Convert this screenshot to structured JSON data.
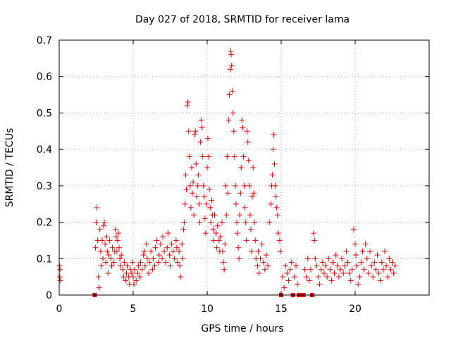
{
  "chart_data": {
    "type": "scatter",
    "title": "Day 027 of 2018, SRMTID for receiver lama",
    "xlabel": "GPS time / hours",
    "ylabel": "SRMTID / TECUs",
    "xlim": [
      0,
      25
    ],
    "ylim": [
      0,
      0.7
    ],
    "xticks": [
      0,
      5,
      10,
      15,
      20
    ],
    "yticks": [
      0,
      0.1,
      0.2,
      0.3,
      0.4,
      0.5,
      0.6,
      0.7
    ],
    "xtick_labels": [
      "0",
      "5",
      "10",
      "15",
      "20"
    ],
    "ytick_labels": [
      "0",
      "0.1",
      "0.2",
      "0.3",
      "0.4",
      "0.5",
      "0.6",
      "0.7"
    ],
    "grid": true,
    "marker": "+",
    "color": "#e00000",
    "series": [
      {
        "name": "SRMTID",
        "points": [
          [
            0.02,
            0.08
          ],
          [
            0.04,
            0.05
          ],
          [
            0.06,
            0.07
          ],
          [
            0.08,
            0.04
          ],
          [
            2.4,
            0.0
          ],
          [
            2.45,
            0.13
          ],
          [
            2.5,
            0.2
          ],
          [
            2.55,
            0.24
          ],
          [
            2.6,
            0.15
          ],
          [
            2.65,
            0.05
          ],
          [
            2.7,
            0.02
          ],
          [
            2.75,
            0.18
          ],
          [
            2.8,
            0.12
          ],
          [
            2.85,
            0.08
          ],
          [
            2.9,
            0.15
          ],
          [
            2.95,
            0.1
          ],
          [
            3.0,
            0.19
          ],
          [
            3.05,
            0.2
          ],
          [
            3.1,
            0.14
          ],
          [
            3.15,
            0.09
          ],
          [
            3.2,
            0.16
          ],
          [
            3.25,
            0.12
          ],
          [
            3.3,
            0.06
          ],
          [
            3.35,
            0.11
          ],
          [
            3.4,
            0.15
          ],
          [
            3.5,
            0.1
          ],
          [
            3.55,
            0.08
          ],
          [
            3.6,
            0.13
          ],
          [
            3.7,
            0.09
          ],
          [
            3.75,
            0.12
          ],
          [
            3.8,
            0.18
          ],
          [
            3.85,
            0.16
          ],
          [
            3.9,
            0.12
          ],
          [
            3.95,
            0.15
          ],
          [
            4.0,
            0.17
          ],
          [
            4.05,
            0.13
          ],
          [
            4.1,
            0.1
          ],
          [
            4.15,
            0.08
          ],
          [
            4.2,
            0.11
          ],
          [
            4.3,
            0.07
          ],
          [
            4.35,
            0.05
          ],
          [
            4.4,
            0.09
          ],
          [
            4.5,
            0.04
          ],
          [
            4.55,
            0.06
          ],
          [
            4.6,
            0.08
          ],
          [
            4.7,
            0.05
          ],
          [
            4.75,
            0.03
          ],
          [
            4.8,
            0.07
          ],
          [
            4.9,
            0.06
          ],
          [
            4.95,
            0.09
          ],
          [
            5.0,
            0.05
          ],
          [
            5.05,
            0.03
          ],
          [
            5.1,
            0.07
          ],
          [
            5.2,
            0.04
          ],
          [
            5.3,
            0.06
          ],
          [
            5.35,
            0.08
          ],
          [
            5.45,
            0.05
          ],
          [
            5.5,
            0.09
          ],
          [
            5.6,
            0.07
          ],
          [
            5.7,
            0.11
          ],
          [
            5.75,
            0.12
          ],
          [
            5.8,
            0.08
          ],
          [
            5.9,
            0.14
          ],
          [
            5.95,
            0.1
          ],
          [
            6.05,
            0.06
          ],
          [
            6.1,
            0.09
          ],
          [
            6.2,
            0.12
          ],
          [
            6.3,
            0.07
          ],
          [
            6.35,
            0.1
          ],
          [
            6.45,
            0.08
          ],
          [
            6.5,
            0.13
          ],
          [
            6.6,
            0.15
          ],
          [
            6.7,
            0.09
          ],
          [
            6.75,
            0.11
          ],
          [
            6.85,
            0.14
          ],
          [
            6.95,
            0.1
          ],
          [
            7.0,
            0.16
          ],
          [
            7.1,
            0.12
          ],
          [
            7.2,
            0.09
          ],
          [
            7.3,
            0.13
          ],
          [
            7.35,
            0.17
          ],
          [
            7.45,
            0.11
          ],
          [
            7.5,
            0.08
          ],
          [
            7.6,
            0.14
          ],
          [
            7.7,
            0.12
          ],
          [
            7.8,
            0.1
          ],
          [
            7.9,
            0.15
          ],
          [
            7.95,
            0.13
          ],
          [
            8.0,
            0.09
          ],
          [
            8.1,
            0.12
          ],
          [
            8.15,
            0.08
          ],
          [
            8.2,
            0.05
          ],
          [
            8.3,
            0.14
          ],
          [
            8.35,
            0.1
          ],
          [
            8.4,
            0.18
          ],
          [
            8.45,
            0.2
          ],
          [
            8.5,
            0.25
          ],
          [
            8.55,
            0.33
          ],
          [
            8.6,
            0.29
          ],
          [
            8.65,
            0.52
          ],
          [
            8.7,
            0.53
          ],
          [
            8.75,
            0.45
          ],
          [
            8.8,
            0.38
          ],
          [
            8.85,
            0.3
          ],
          [
            8.9,
            0.24
          ],
          [
            8.95,
            0.35
          ],
          [
            9.0,
            0.28
          ],
          [
            9.05,
            0.31
          ],
          [
            9.1,
            0.22
          ],
          [
            9.15,
            0.44
          ],
          [
            9.2,
            0.45
          ],
          [
            9.25,
            0.36
          ],
          [
            9.3,
            0.27
          ],
          [
            9.35,
            0.3
          ],
          [
            9.4,
            0.33
          ],
          [
            9.45,
            0.25
          ],
          [
            9.5,
            0.2
          ],
          [
            9.55,
            0.42
          ],
          [
            9.6,
            0.48
          ],
          [
            9.65,
            0.46
          ],
          [
            9.7,
            0.38
          ],
          [
            9.75,
            0.3
          ],
          [
            9.8,
            0.27
          ],
          [
            9.85,
            0.21
          ],
          [
            9.9,
            0.17
          ],
          [
            9.95,
            0.25
          ],
          [
            10.0,
            0.35
          ],
          [
            10.05,
            0.43
          ],
          [
            10.1,
            0.38
          ],
          [
            10.15,
            0.29
          ],
          [
            10.2,
            0.24
          ],
          [
            10.25,
            0.2
          ],
          [
            10.3,
            0.26
          ],
          [
            10.35,
            0.22
          ],
          [
            10.4,
            0.18
          ],
          [
            10.45,
            0.15
          ],
          [
            10.5,
            0.22
          ],
          [
            10.6,
            0.17
          ],
          [
            10.65,
            0.13
          ],
          [
            10.7,
            0.19
          ],
          [
            10.8,
            0.15
          ],
          [
            10.85,
            0.12
          ],
          [
            10.9,
            0.16
          ],
          [
            11.0,
            0.2
          ],
          [
            11.05,
            0.12
          ],
          [
            11.1,
            0.09
          ],
          [
            11.15,
            0.07
          ],
          [
            11.2,
            0.14
          ],
          [
            11.25,
            0.3
          ],
          [
            11.3,
            0.22
          ],
          [
            11.35,
            0.38
          ],
          [
            11.4,
            0.28
          ],
          [
            11.45,
            0.48
          ],
          [
            11.5,
            0.55
          ],
          [
            11.55,
            0.62
          ],
          [
            11.6,
            0.67
          ],
          [
            11.62,
            0.66
          ],
          [
            11.65,
            0.63
          ],
          [
            11.7,
            0.56
          ],
          [
            11.75,
            0.5
          ],
          [
            11.8,
            0.45
          ],
          [
            11.85,
            0.38
          ],
          [
            11.9,
            0.3
          ],
          [
            11.95,
            0.25
          ],
          [
            12.0,
            0.2
          ],
          [
            12.05,
            0.17
          ],
          [
            12.1,
            0.13
          ],
          [
            12.15,
            0.1
          ],
          [
            12.2,
            0.22
          ],
          [
            12.25,
            0.28
          ],
          [
            12.3,
            0.35
          ],
          [
            12.35,
            0.48
          ],
          [
            12.4,
            0.46
          ],
          [
            12.45,
            0.38
          ],
          [
            12.5,
            0.3
          ],
          [
            12.55,
            0.24
          ],
          [
            12.6,
            0.2
          ],
          [
            12.65,
            0.15
          ],
          [
            12.7,
            0.45
          ],
          [
            12.75,
            0.42
          ],
          [
            12.8,
            0.37
          ],
          [
            12.85,
            0.3
          ],
          [
            12.9,
            0.22
          ],
          [
            12.95,
            0.18
          ],
          [
            13.0,
            0.12
          ],
          [
            13.05,
            0.27
          ],
          [
            13.1,
            0.35
          ],
          [
            13.15,
            0.28
          ],
          [
            13.2,
            0.2
          ],
          [
            13.25,
            0.15
          ],
          [
            13.3,
            0.1
          ],
          [
            13.4,
            0.08
          ],
          [
            13.45,
            0.12
          ],
          [
            13.5,
            0.06
          ],
          [
            13.6,
            0.1
          ],
          [
            13.7,
            0.14
          ],
          [
            13.8,
            0.09
          ],
          [
            13.9,
            0.07
          ],
          [
            14.0,
            0.11
          ],
          [
            14.1,
            0.08
          ],
          [
            14.2,
            0.2
          ],
          [
            14.3,
            0.25
          ],
          [
            14.35,
            0.3
          ],
          [
            14.4,
            0.33
          ],
          [
            14.45,
            0.4
          ],
          [
            14.5,
            0.44
          ],
          [
            14.55,
            0.36
          ],
          [
            14.6,
            0.3
          ],
          [
            14.65,
            0.27
          ],
          [
            14.7,
            0.24
          ],
          [
            14.75,
            0.22
          ],
          [
            14.8,
            0.17
          ],
          [
            14.9,
            0.15
          ],
          [
            14.95,
            0.12
          ],
          [
            15.0,
            0.0
          ],
          [
            15.1,
            0.05
          ],
          [
            15.2,
            0.02
          ],
          [
            15.3,
            0.08
          ],
          [
            15.4,
            0.06
          ],
          [
            15.5,
            0.04
          ],
          [
            15.6,
            0.07
          ],
          [
            15.7,
            0.09
          ],
          [
            15.8,
            0.0
          ],
          [
            15.9,
            0.05
          ],
          [
            16.0,
            0.08
          ],
          [
            16.1,
            0.03
          ],
          [
            16.2,
            0.0
          ],
          [
            16.3,
            0.0
          ],
          [
            16.4,
            0.0
          ],
          [
            16.5,
            0.0
          ],
          [
            16.6,
            0.07
          ],
          [
            16.7,
            0.05
          ],
          [
            16.8,
            0.1
          ],
          [
            16.9,
            0.04
          ],
          [
            17.0,
            0.07
          ],
          [
            17.1,
            0.0
          ],
          [
            17.2,
            0.17
          ],
          [
            17.25,
            0.15
          ],
          [
            17.3,
            0.1
          ],
          [
            17.4,
            0.08
          ],
          [
            17.5,
            0.05
          ],
          [
            17.6,
            0.03
          ],
          [
            17.7,
            0.07
          ],
          [
            17.8,
            0.09
          ],
          [
            17.9,
            0.06
          ],
          [
            18.0,
            0.08
          ],
          [
            18.1,
            0.05
          ],
          [
            18.2,
            0.1
          ],
          [
            18.3,
            0.07
          ],
          [
            18.4,
            0.04
          ],
          [
            18.5,
            0.09
          ],
          [
            18.6,
            0.06
          ],
          [
            18.7,
            0.11
          ],
          [
            18.8,
            0.08
          ],
          [
            18.9,
            0.05
          ],
          [
            19.0,
            0.07
          ],
          [
            19.1,
            0.1
          ],
          [
            19.2,
            0.06
          ],
          [
            19.3,
            0.08
          ],
          [
            19.4,
            0.12
          ],
          [
            19.5,
            0.09
          ],
          [
            19.6,
            0.06
          ],
          [
            19.7,
            0.04
          ],
          [
            19.8,
            0.07
          ],
          [
            19.9,
            0.18
          ],
          [
            20.0,
            0.14
          ],
          [
            20.05,
            0.11
          ],
          [
            20.1,
            0.08
          ],
          [
            20.2,
            0.03
          ],
          [
            20.3,
            0.05
          ],
          [
            20.4,
            0.09
          ],
          [
            20.5,
            0.12
          ],
          [
            20.6,
            0.07
          ],
          [
            20.7,
            0.14
          ],
          [
            20.8,
            0.1
          ],
          [
            20.9,
            0.06
          ],
          [
            21.0,
            0.12
          ],
          [
            21.1,
            0.08
          ],
          [
            21.2,
            0.05
          ],
          [
            21.3,
            0.09
          ],
          [
            21.4,
            0.07
          ],
          [
            21.5,
            0.11
          ],
          [
            21.6,
            0.06
          ],
          [
            21.7,
            0.04
          ],
          [
            21.8,
            0.09
          ],
          [
            21.9,
            0.07
          ],
          [
            22.0,
            0.12
          ],
          [
            22.1,
            0.08
          ],
          [
            22.2,
            0.05
          ],
          [
            22.3,
            0.1
          ],
          [
            22.4,
            0.07
          ],
          [
            22.5,
            0.09
          ],
          [
            22.6,
            0.06
          ],
          [
            22.7,
            0.08
          ]
        ]
      }
    ]
  }
}
